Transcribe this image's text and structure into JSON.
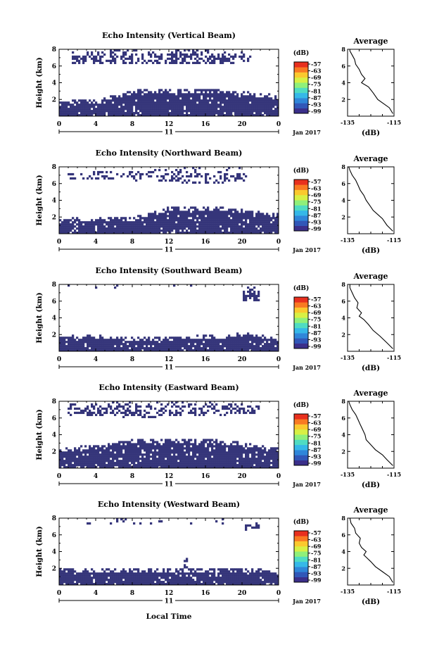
{
  "figure": {
    "x_label": "Local Time",
    "day_label": "11",
    "date_label": "Jan 2017",
    "colorbar_unit": "(dB)",
    "average_title": "Average",
    "average_xlabel": "(dB)"
  },
  "colors": {
    "echo": "#35357a",
    "axis": "#000000",
    "colorbar": [
      "#3b2f8a",
      "#3157b8",
      "#2f86d9",
      "#35b8e8",
      "#4fdcc2",
      "#8ff07a",
      "#d8f044",
      "#fbc92e",
      "#f97a22",
      "#e8301e"
    ]
  },
  "chart_data": [
    {
      "type": "heatmap",
      "title": "Echo Intensity (Vertical Beam)",
      "ylabel": "Height (km)",
      "xlim": [
        0,
        24
      ],
      "ylim": [
        0,
        8
      ],
      "x_ticks": [
        "0",
        "4",
        "8",
        "12",
        "16",
        "20",
        "0"
      ],
      "y_ticks": [
        "2",
        "4",
        "6",
        "8"
      ],
      "colorbar_ticks": [
        "-57",
        "-63",
        "-69",
        "-75",
        "-81",
        "-87",
        "-93",
        "-99"
      ],
      "layers": [
        {
          "t": [
            0,
            24
          ],
          "base": [
            0,
            0,
            0,
            0,
            0,
            0,
            0
          ],
          "top": [
            1.8,
            2.0,
            3.1,
            3.3,
            3.2,
            3.0,
            2.5
          ],
          "density": 0.95
        },
        {
          "t": [
            1.5,
            21
          ],
          "base": [
            6.4,
            6.3,
            6.2,
            6.3,
            6.2,
            6.4,
            6.5
          ],
          "top": [
            7.6,
            7.8,
            8.0,
            8.0,
            7.9,
            7.8,
            7.6
          ],
          "density": 0.5
        }
      ],
      "average": {
        "xlim": [
          -135,
          -115
        ],
        "x_ticks": [
          "-135",
          "-115"
        ],
        "y_ticks": [
          "2",
          "4",
          "6",
          "8"
        ],
        "h": [
          0.3,
          1,
          2,
          2.8,
          3.5,
          4,
          4.5,
          5,
          5.6,
          6.2,
          6.8,
          7.3,
          7.8,
          8
        ],
        "db": [
          -115.5,
          -117,
          -122,
          -124,
          -126,
          -129,
          -127.5,
          -129,
          -130,
          -131.5,
          -132,
          -133,
          -134,
          -134
        ]
      },
      "seed": 11
    },
    {
      "type": "heatmap",
      "title": "Echo Intensity (Northward Beam)",
      "ylabel": "Height (km)",
      "xlim": [
        0,
        24
      ],
      "ylim": [
        0,
        8
      ],
      "x_ticks": [
        "0",
        "4",
        "8",
        "12",
        "16",
        "20",
        "0"
      ],
      "y_ticks": [
        "2",
        "4",
        "6",
        "8"
      ],
      "colorbar_ticks": [
        "-57",
        "-63",
        "-69",
        "-75",
        "-81",
        "-87",
        "-93",
        "-99"
      ],
      "layers": [
        {
          "t": [
            0,
            24
          ],
          "base": [
            0,
            0,
            0,
            0,
            0,
            0,
            0
          ],
          "top": [
            1.8,
            2.0,
            2.0,
            3.2,
            3.3,
            3.0,
            2.4
          ],
          "density": 0.93
        },
        {
          "t": [
            1,
            20.5
          ],
          "base": [
            6.6,
            6.5,
            6.4,
            6.0,
            6.0,
            6.2,
            6.6
          ],
          "top": [
            7.6,
            7.5,
            7.6,
            8.0,
            8.0,
            7.9,
            7.5
          ],
          "density": 0.3
        }
      ],
      "average": {
        "xlim": [
          -135,
          -115
        ],
        "x_ticks": [
          "-135",
          "-115"
        ],
        "y_ticks": [
          "2",
          "4",
          "6",
          "8"
        ],
        "h": [
          0.3,
          1,
          1.8,
          2.3,
          2.8,
          3.4,
          4,
          4.6,
          5.2,
          5.8,
          6.4,
          7,
          7.6,
          8
        ],
        "db": [
          -115.5,
          -118,
          -120,
          -122,
          -124,
          -125.5,
          -127,
          -128,
          -129.5,
          -130.5,
          -131.5,
          -133,
          -134,
          -134.5
        ]
      },
      "seed": 23
    },
    {
      "type": "heatmap",
      "title": "Echo Intensity (Southward Beam)",
      "ylabel": "Height (km)",
      "xlim": [
        0,
        24
      ],
      "ylim": [
        0,
        8
      ],
      "x_ticks": [
        "0",
        "4",
        "8",
        "12",
        "16",
        "20",
        "0"
      ],
      "y_ticks": [
        "2",
        "4",
        "6",
        "8"
      ],
      "colorbar_ticks": [
        "-57",
        "-63",
        "-69",
        "-75",
        "-81",
        "-87",
        "-93",
        "-99"
      ],
      "layers": [
        {
          "t": [
            0,
            24
          ],
          "base": [
            0,
            0,
            0,
            0,
            0,
            0,
            0
          ],
          "top": [
            1.9,
            1.9,
            1.8,
            1.8,
            1.9,
            2.2,
            1.8
          ],
          "density": 0.93
        },
        {
          "t": [
            20,
            22
          ],
          "base": [
            6.2,
            6.0,
            6.2,
            6.4,
            6.2,
            6.0,
            6.2
          ],
          "top": [
            7.8,
            8.0,
            8.0,
            8.0,
            7.9,
            7.8,
            7.6
          ],
          "density": 0.6
        },
        {
          "t": [
            1,
            15
          ],
          "base": [
            7.5,
            7.4,
            7.5,
            7.6,
            7.5,
            7.4,
            7.5
          ],
          "top": [
            8.0,
            8.0,
            8.0,
            8.0,
            8.0,
            8.0,
            8.0
          ],
          "density": 0.08
        }
      ],
      "average": {
        "xlim": [
          -135,
          -115
        ],
        "x_ticks": [
          "-135",
          "-115"
        ],
        "y_ticks": [
          "2",
          "4",
          "6",
          "8"
        ],
        "h": [
          0.3,
          1,
          1.8,
          2.5,
          3.2,
          3.8,
          4.2,
          4.6,
          5.2,
          5.8,
          6.4,
          7,
          7.6,
          8
        ],
        "db": [
          -115.5,
          -118,
          -121,
          -124,
          -126,
          -128,
          -130,
          -129,
          -131,
          -130.5,
          -132,
          -133,
          -134,
          -134
        ]
      },
      "seed": 37
    },
    {
      "type": "heatmap",
      "title": "Echo Intensity (Eastward Beam)",
      "ylabel": "Height (km)",
      "xlim": [
        0,
        24
      ],
      "ylim": [
        0,
        8
      ],
      "x_ticks": [
        "0",
        "4",
        "8",
        "12",
        "16",
        "20",
        "0"
      ],
      "y_ticks": [
        "2",
        "4",
        "6",
        "8"
      ],
      "colorbar_ticks": [
        "-57",
        "-63",
        "-69",
        "-75",
        "-81",
        "-87",
        "-93",
        "-99"
      ],
      "layers": [
        {
          "t": [
            0,
            24
          ],
          "base": [
            0,
            0,
            0,
            0,
            0,
            0,
            0
          ],
          "top": [
            2.4,
            2.8,
            3.4,
            3.6,
            3.5,
            3.1,
            2.4
          ],
          "density": 0.93
        },
        {
          "t": [
            1,
            22
          ],
          "base": [
            6.4,
            6.3,
            6.0,
            6.2,
            6.2,
            6.5,
            6.8
          ],
          "top": [
            7.6,
            7.8,
            8.0,
            8.0,
            7.9,
            7.8,
            7.4
          ],
          "density": 0.45
        }
      ],
      "average": {
        "xlim": [
          -135,
          -115
        ],
        "x_ticks": [
          "-135",
          "-115"
        ],
        "y_ticks": [
          "2",
          "4",
          "6",
          "8"
        ],
        "h": [
          0.3,
          1,
          1.6,
          2.2,
          2.8,
          3.4,
          4,
          4.6,
          5.2,
          5.8,
          6.4,
          7,
          7.6,
          8
        ],
        "db": [
          -115.5,
          -118,
          -120,
          -123,
          -125,
          -127,
          -127.5,
          -128.5,
          -129.5,
          -130.5,
          -131.5,
          -133,
          -134,
          -134.5
        ]
      },
      "seed": 51
    },
    {
      "type": "heatmap",
      "title": "Echo Intensity (Westward Beam)",
      "ylabel": "Height (km)",
      "xlim": [
        0,
        24
      ],
      "ylim": [
        0,
        8
      ],
      "x_ticks": [
        "0",
        "4",
        "8",
        "12",
        "16",
        "20",
        "0"
      ],
      "y_ticks": [
        "2",
        "4",
        "6",
        "8"
      ],
      "colorbar_ticks": [
        "-57",
        "-63",
        "-69",
        "-75",
        "-81",
        "-87",
        "-93",
        "-99"
      ],
      "layers": [
        {
          "t": [
            0,
            24
          ],
          "base": [
            0,
            0,
            0,
            0,
            0,
            0,
            0
          ],
          "top": [
            2.0,
            2.0,
            1.9,
            2.0,
            2.0,
            2.0,
            1.8
          ],
          "density": 0.94
        },
        {
          "t": [
            20,
            22
          ],
          "base": [
            6.8,
            6.6,
            6.8,
            7.0,
            6.8,
            6.6,
            6.8
          ],
          "top": [
            7.6,
            7.8,
            8.0,
            8.0,
            7.8,
            7.6,
            7.4
          ],
          "density": 0.5
        },
        {
          "t": [
            13.6,
            14.0
          ],
          "base": [
            2.0,
            2.0,
            2.0,
            2.0,
            2.0,
            2.0,
            2.0
          ],
          "top": [
            3.2,
            3.2,
            3.2,
            3.2,
            3.2,
            3.2,
            3.2
          ],
          "density": 0.9
        },
        {
          "t": [
            1,
            18
          ],
          "base": [
            7.3,
            7.2,
            7.3,
            7.4,
            7.3,
            7.2,
            7.3
          ],
          "top": [
            8.0,
            8.0,
            8.0,
            8.0,
            8.0,
            8.0,
            8.0
          ],
          "density": 0.08
        }
      ],
      "average": {
        "xlim": [
          -135,
          -115
        ],
        "x_ticks": [
          "-135",
          "-115"
        ],
        "y_ticks": [
          "2",
          "4",
          "6",
          "8"
        ],
        "h": [
          0.3,
          1,
          1.6,
          2.2,
          2.8,
          3.2,
          3.6,
          4,
          4.5,
          5,
          5.6,
          6.2,
          6.8,
          7.4,
          8
        ],
        "db": [
          -115.5,
          -117,
          -120,
          -123,
          -125,
          -126.5,
          -128,
          -127,
          -129,
          -130,
          -129.5,
          -131.5,
          -132,
          -133.5,
          -134
        ]
      },
      "seed": 67
    }
  ]
}
